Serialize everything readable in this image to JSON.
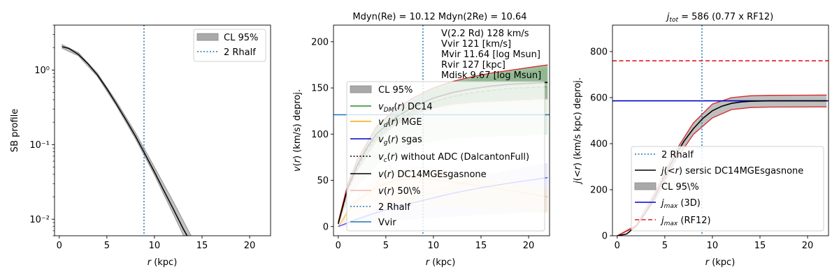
{
  "chart_data": [
    {
      "type": "line",
      "panel": "surface-brightness",
      "title": "",
      "xlabel": "r (kpc)",
      "ylabel": "SB profile",
      "xscale": "linear",
      "yscale": "log",
      "xlim": [
        -0.5,
        22.2
      ],
      "ylim": [
        0.006,
        4.0
      ],
      "xticks": [
        0,
        5,
        10,
        15,
        20
      ],
      "xtick_labels": [
        "0",
        "5",
        "10",
        "15",
        "20"
      ],
      "yticks": [
        0.01,
        0.1,
        1
      ],
      "ytick_labels": [
        "10⁻²",
        "10⁻¹",
        "10⁰"
      ],
      "vline_x": 8.9,
      "legend": {
        "placement": "top-right",
        "entries": [
          "CL 95%",
          "2 Rhalf"
        ]
      },
      "series": [
        {
          "name": "SB profile",
          "x": [
            0.3,
            1,
            2,
            3,
            4,
            5,
            6,
            7,
            8,
            9,
            10,
            11,
            12,
            13,
            13.6
          ],
          "y": [
            2.05,
            1.95,
            1.62,
            1.22,
            0.86,
            0.56,
            0.35,
            0.215,
            0.13,
            0.075,
            0.043,
            0.024,
            0.0135,
            0.0075,
            0.0055
          ]
        },
        {
          "name": "CL 95% low",
          "x": [
            0.3,
            2,
            4,
            6,
            8,
            10,
            12,
            13.2
          ],
          "y": [
            1.95,
            1.55,
            0.82,
            0.33,
            0.12,
            0.039,
            0.0115,
            0.0055
          ]
        },
        {
          "name": "CL 95% high",
          "x": [
            0.3,
            2,
            4,
            6,
            8,
            10,
            12,
            14
          ],
          "y": [
            2.2,
            1.72,
            0.91,
            0.38,
            0.145,
            0.05,
            0.017,
            0.0055
          ]
        }
      ]
    },
    {
      "type": "line",
      "panel": "velocity",
      "title": "Mdyn(Re) = 10.12  Mdyn(2Re) = 10.64",
      "xlabel": "r (kpc)",
      "ylabel": "v(r) (km/s) deproj.",
      "xlim": [
        -0.5,
        22.2
      ],
      "ylim": [
        -10,
        218
      ],
      "xticks": [
        0,
        5,
        10,
        15,
        20
      ],
      "xtick_labels": [
        "0",
        "5",
        "10",
        "15",
        "20"
      ],
      "yticks": [
        0,
        50,
        100,
        150,
        200
      ],
      "ytick_labels": [
        "0",
        "50",
        "100",
        "150",
        "200"
      ],
      "vline_x": 8.9,
      "vvir": 121,
      "annotations": [
        "V(2.2 Rd) 128 km/s",
        "Vvir 121 [km/s]",
        "Mvir 11.64 [log Msun]",
        "Rvir 127 [kpc]",
        "Mdisk 9.67 [log Msun]"
      ],
      "legend": {
        "placement": "center",
        "entries": [
          "CL 95%",
          "v_DM(r) DC14",
          "v_d(r) MGE",
          "v_g(r) sgas",
          "v_c(r) without ADC (DalcantonFull)",
          "v(r) DC14MGEsgasnone",
          "v(r) 50\\%",
          "2 Rhalf",
          "Vvir"
        ]
      },
      "series": [
        {
          "name": "v(r) DC14MGEsgasnone",
          "x": [
            0,
            1,
            2,
            3,
            4,
            6,
            8,
            10,
            12,
            14,
            16,
            18,
            20,
            22
          ],
          "y": [
            3,
            42,
            66,
            85,
            100,
            118,
            130,
            139,
            145,
            149,
            152,
            154,
            155,
            156
          ]
        },
        {
          "name": "v(r) upper",
          "x": [
            0,
            1,
            2,
            4,
            6,
            8,
            10,
            12,
            14,
            16,
            18,
            20,
            22
          ],
          "y": [
            5,
            46,
            72,
            108,
            127,
            140,
            150,
            157,
            162,
            166,
            169,
            172,
            175
          ]
        },
        {
          "name": "v(r) lower",
          "x": [
            0,
            1,
            2,
            4,
            6,
            8,
            10,
            12,
            14,
            16,
            18,
            20,
            22
          ],
          "y": [
            2,
            38,
            60,
            92,
            110,
            121,
            128,
            132,
            134,
            135,
            136,
            137,
            138
          ]
        },
        {
          "name": "v_d(r) MGE",
          "x": [
            0,
            1,
            2,
            4,
            6,
            8,
            10,
            12,
            15,
            18,
            22
          ],
          "y": [
            0,
            16,
            28,
            43,
            50,
            52,
            51,
            48,
            44,
            39,
            32
          ]
        },
        {
          "name": "v_g(r) sgas",
          "x": [
            0,
            2,
            4,
            6,
            8,
            10,
            12,
            15,
            18,
            22
          ],
          "y": [
            0,
            8,
            15,
            21,
            26,
            31,
            36,
            42,
            47,
            53
          ]
        },
        {
          "name": "v(r) 50\\%",
          "x": [
            0,
            1,
            2,
            4,
            6,
            8,
            10,
            12,
            15,
            18,
            22
          ],
          "y": [
            3,
            40,
            64,
            98,
            116,
            128,
            137,
            143,
            148,
            151,
            153
          ]
        }
      ]
    },
    {
      "type": "line",
      "panel": "angular-momentum",
      "title": "j_tot = 586 (0.77 x RF12)",
      "title_prefix": "j",
      "title_subscript": "tot",
      "title_rest": " = 586 (0.77 x RF12)",
      "xlabel": "r (kpc)",
      "ylabel": "j(<r) (km/s kpc) deproj.",
      "xlim": [
        -0.5,
        22.2
      ],
      "ylim": [
        0,
        915
      ],
      "xticks": [
        0,
        5,
        10,
        15,
        20
      ],
      "xtick_labels": [
        "0",
        "5",
        "10",
        "15",
        "20"
      ],
      "yticks": [
        0,
        200,
        400,
        600,
        800
      ],
      "ytick_labels": [
        "0",
        "200",
        "400",
        "600",
        "800"
      ],
      "vline_x": 8.9,
      "j_max_3d": 586,
      "j_max_rf12": 760,
      "legend": {
        "placement": "lower-right",
        "entries": [
          "2 Rhalf",
          "j(<r) sersic DC14MGEsgasnone",
          "CL 95\\%",
          "j_max (3D)",
          "j_max (RF12)"
        ]
      },
      "series": [
        {
          "name": "j(<r) sersic DC14MGEsgasnone",
          "x": [
            0,
            1,
            2,
            3,
            4,
            5,
            6,
            7,
            8,
            9,
            10,
            11,
            12,
            13,
            14,
            16,
            18,
            22
          ],
          "y": [
            0,
            8,
            42,
            100,
            175,
            260,
            340,
            410,
            465,
            510,
            543,
            563,
            575,
            581,
            584,
            586,
            586,
            586
          ]
        },
        {
          "name": "CL upper",
          "x": [
            0,
            2,
            4,
            6,
            8,
            10,
            12,
            14,
            16,
            22
          ],
          "y": [
            0,
            45,
            190,
            360,
            490,
            572,
            600,
            608,
            610,
            611
          ]
        },
        {
          "name": "CL lower",
          "x": [
            0,
            2,
            4,
            6,
            8,
            10,
            12,
            14,
            16,
            22
          ],
          "y": [
            0,
            40,
            160,
            320,
            440,
            512,
            548,
            557,
            559,
            560
          ]
        }
      ]
    }
  ]
}
